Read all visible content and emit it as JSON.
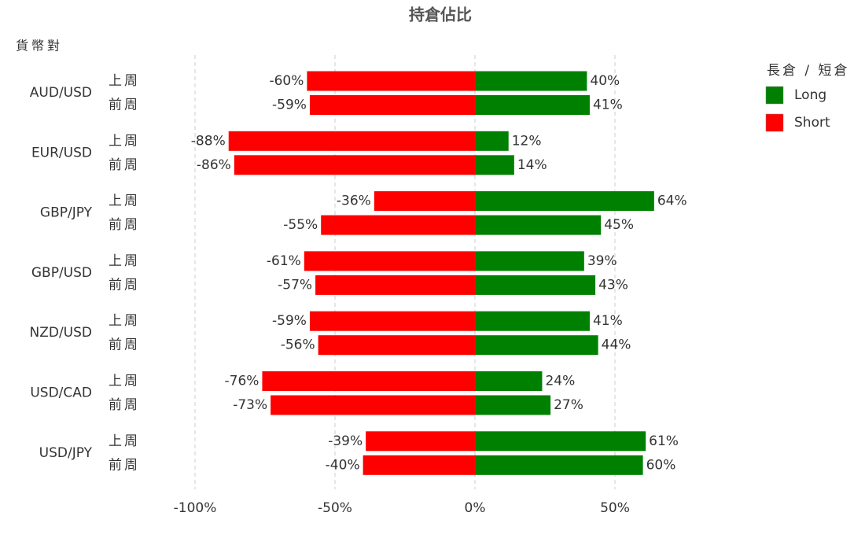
{
  "chart_data": {
    "type": "diverging-bar",
    "title": "持倉佔比",
    "y_label": "貨幣對",
    "categories": [
      "AUD/USD",
      "EUR/USD",
      "GBP/JPY",
      "GBP/USD",
      "NZD/USD",
      "USD/CAD",
      "USD/JPY"
    ],
    "periods": [
      "上周",
      "前周"
    ],
    "legend_title": "長倉 / 短倉",
    "legend": "top-right",
    "series": [
      {
        "name": "Long",
        "color": "#008000",
        "values": [
          [
            40,
            41
          ],
          [
            12,
            14
          ],
          [
            64,
            45
          ],
          [
            39,
            43
          ],
          [
            41,
            44
          ],
          [
            24,
            27
          ],
          [
            61,
            60
          ]
        ],
        "value_labels": [
          [
            "40%",
            "41%"
          ],
          [
            "12%",
            "14%"
          ],
          [
            "64%",
            "45%"
          ],
          [
            "39%",
            "43%"
          ],
          [
            "41%",
            "44%"
          ],
          [
            "24%",
            "27%"
          ],
          [
            "61%",
            "60%"
          ]
        ]
      },
      {
        "name": "Short",
        "color": "#ff0000",
        "values": [
          [
            -60,
            -59
          ],
          [
            -88,
            -86
          ],
          [
            -36,
            -55
          ],
          [
            -61,
            -57
          ],
          [
            -59,
            -56
          ],
          [
            -76,
            -73
          ],
          [
            -39,
            -40
          ]
        ],
        "value_labels": [
          [
            "-60%",
            "-59%"
          ],
          [
            "-88%",
            "-86%"
          ],
          [
            "-36%",
            "-55%"
          ],
          [
            "-61%",
            "-57%"
          ],
          [
            "-59%",
            "-56%"
          ],
          [
            "-76%",
            "-73%"
          ],
          [
            "-39%",
            "-40%"
          ]
        ]
      }
    ],
    "xlim": [
      -100,
      65
    ],
    "xticks": [
      {
        "value": -100,
        "label": "-100%"
      },
      {
        "value": -50,
        "label": "-50%"
      },
      {
        "value": 0,
        "label": "0%"
      },
      {
        "value": 50,
        "label": "50%"
      }
    ],
    "grid": true
  }
}
